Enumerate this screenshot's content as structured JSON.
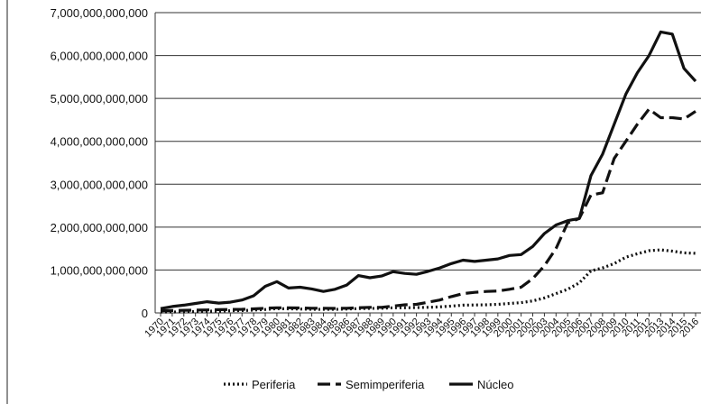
{
  "chart_data": {
    "type": "line",
    "title": "",
    "xlabel": "",
    "ylabel": "",
    "ylim": [
      0,
      7000000000000
    ],
    "y_ticks": [
      0,
      1000000000000,
      2000000000000,
      3000000000000,
      4000000000000,
      5000000000000,
      6000000000000,
      7000000000000
    ],
    "y_tick_labels": [
      "0",
      "1,000,000,000,000",
      "2,000,000,000,000",
      "3,000,000,000,000",
      "4,000,000,000,000",
      "5,000,000,000,000",
      "6,000,000,000,000",
      "7,000,000,000,000"
    ],
    "grid": true,
    "legend_position": "bottom",
    "x": [
      "1970",
      "1971",
      "1972",
      "1973",
      "1974",
      "1975",
      "1976",
      "1977",
      "1978",
      "1979",
      "1980",
      "1981",
      "1982",
      "1983",
      "1984",
      "1985",
      "1986",
      "1987",
      "1988",
      "1989",
      "1990",
      "1991",
      "1992",
      "1993",
      "1994",
      "1995",
      "1996",
      "1997",
      "1998",
      "1999",
      "2000",
      "2001",
      "2002",
      "2003",
      "2004",
      "2005",
      "2006",
      "2007",
      "2008",
      "2009",
      "2010",
      "2011",
      "2012",
      "2013",
      "2014",
      "2015",
      "2016"
    ],
    "series": [
      {
        "name": "Periferia",
        "style": "dotted",
        "color": "#111111",
        "values": [
          20000000000,
          22000000000,
          25000000000,
          30000000000,
          40000000000,
          45000000000,
          50000000000,
          55000000000,
          65000000000,
          80000000000,
          100000000000,
          95000000000,
          90000000000,
          85000000000,
          85000000000,
          85000000000,
          90000000000,
          100000000000,
          105000000000,
          110000000000,
          120000000000,
          120000000000,
          125000000000,
          130000000000,
          140000000000,
          160000000000,
          180000000000,
          185000000000,
          190000000000,
          200000000000,
          220000000000,
          240000000000,
          280000000000,
          350000000000,
          450000000000,
          550000000000,
          700000000000,
          980000000000,
          1050000000000,
          1150000000000,
          1300000000000,
          1380000000000,
          1450000000000,
          1470000000000,
          1440000000000,
          1400000000000,
          1390000000000
        ]
      },
      {
        "name": "Semimperiferia",
        "style": "dashed",
        "color": "#111111",
        "values": [
          50000000000,
          55000000000,
          60000000000,
          65000000000,
          70000000000,
          75000000000,
          80000000000,
          85000000000,
          95000000000,
          110000000000,
          120000000000,
          120000000000,
          115000000000,
          110000000000,
          110000000000,
          105000000000,
          110000000000,
          120000000000,
          130000000000,
          130000000000,
          160000000000,
          190000000000,
          200000000000,
          250000000000,
          300000000000,
          380000000000,
          450000000000,
          480000000000,
          500000000000,
          510000000000,
          550000000000,
          600000000000,
          800000000000,
          1100000000000,
          1500000000000,
          2100000000000,
          2200000000000,
          2750000000000,
          2800000000000,
          3600000000000,
          4000000000000,
          4400000000000,
          4750000000000,
          4550000000000,
          4550000000000,
          4520000000000,
          4700000000000
        ]
      },
      {
        "name": "Núcleo",
        "style": "solid",
        "color": "#111111",
        "values": [
          100000000000,
          150000000000,
          180000000000,
          220000000000,
          260000000000,
          230000000000,
          250000000000,
          300000000000,
          400000000000,
          620000000000,
          730000000000,
          580000000000,
          600000000000,
          560000000000,
          500000000000,
          550000000000,
          650000000000,
          870000000000,
          820000000000,
          860000000000,
          960000000000,
          920000000000,
          900000000000,
          970000000000,
          1050000000000,
          1150000000000,
          1230000000000,
          1200000000000,
          1230000000000,
          1260000000000,
          1340000000000,
          1360000000000,
          1550000000000,
          1850000000000,
          2050000000000,
          2150000000000,
          2200000000000,
          3200000000000,
          3700000000000,
          4400000000000,
          5100000000000,
          5600000000000,
          6000000000000,
          6550000000000,
          6500000000000,
          5700000000000,
          5400000000000
        ]
      }
    ]
  }
}
